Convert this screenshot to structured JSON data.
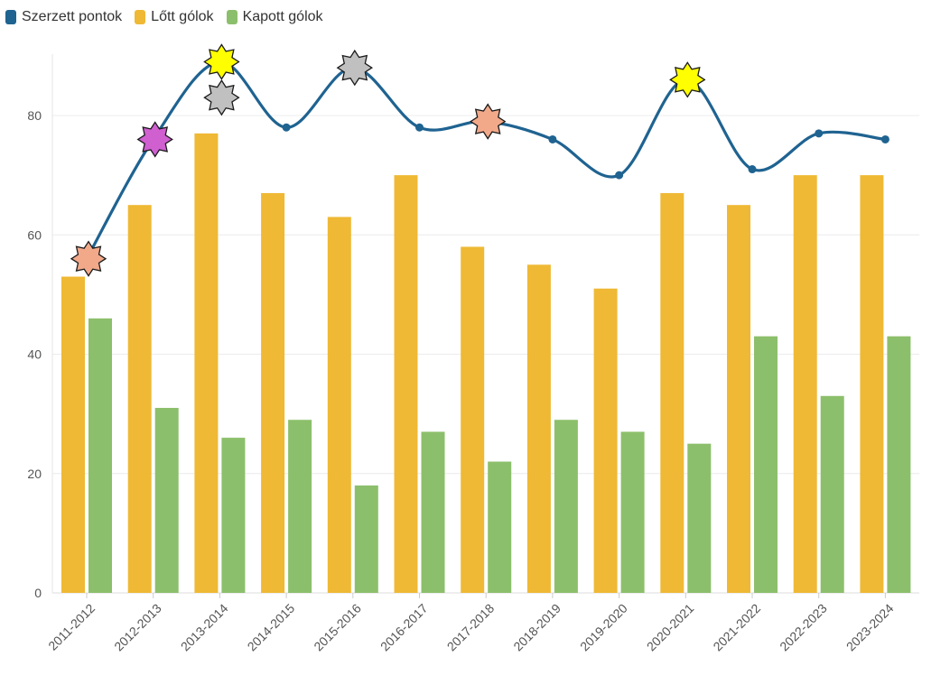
{
  "chart_data": {
    "type": "bar",
    "categories": [
      "2011-2012",
      "2012-2013",
      "2013-2014",
      "2014-2015",
      "2015-2016",
      "2016-2017",
      "2017-2018",
      "2018-2019",
      "2019-2020",
      "2020-2021",
      "2021-2022",
      "2022-2023",
      "2023-2024"
    ],
    "series": [
      {
        "name": "Szerzett pontok",
        "kind": "line",
        "color": "#1f6391",
        "values": [
          56,
          76,
          89,
          78,
          88,
          78,
          79,
          76,
          70,
          86,
          71,
          77,
          76
        ]
      },
      {
        "name": "Lőtt gólok",
        "kind": "bar",
        "color": "#efb935",
        "values": [
          53,
          65,
          77,
          67,
          63,
          70,
          58,
          55,
          51,
          67,
          65,
          70,
          70
        ]
      },
      {
        "name": "Kapott gólok",
        "kind": "bar",
        "color": "#8cbf6b",
        "values": [
          46,
          31,
          26,
          29,
          18,
          27,
          22,
          29,
          27,
          25,
          43,
          33,
          43
        ]
      }
    ],
    "markers": [
      {
        "category": "2011-2012",
        "value": 56,
        "shape": "star",
        "color": "#f2a98a"
      },
      {
        "category": "2012-2013",
        "value": 76,
        "shape": "star",
        "color": "#d05fd0"
      },
      {
        "category": "2013-2014",
        "value": 89,
        "shape": "star",
        "color": "#ffff00"
      },
      {
        "category": "2013-2014",
        "value": 83,
        "shape": "star",
        "color": "#c0c0c0"
      },
      {
        "category": "2015-2016",
        "value": 88,
        "shape": "star",
        "color": "#c0c0c0"
      },
      {
        "category": "2017-2018",
        "value": 79,
        "shape": "star",
        "color": "#f2a98a"
      },
      {
        "category": "2020-2021",
        "value": 86,
        "shape": "star",
        "color": "#ffff00"
      }
    ],
    "yticks": [
      "0",
      "20",
      "40",
      "60",
      "80"
    ],
    "ylim": [
      0,
      90
    ],
    "title": "",
    "xlabel": "",
    "ylabel": "",
    "legend_position": "top-left",
    "grid": true
  }
}
